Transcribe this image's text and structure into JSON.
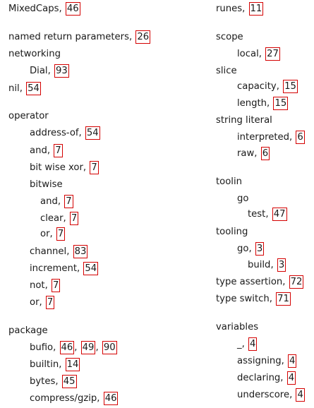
{
  "left_column": [
    {
      "term": "MixedCaps",
      "pages": [
        "46"
      ]
    },
    {
      "term": "named return parameters",
      "pages": [
        "26"
      ]
    },
    {
      "term": "networking",
      "pages": []
    },
    {
      "term": "Dial",
      "pages": [
        "93"
      ]
    },
    {
      "term": "nil",
      "pages": [
        "54"
      ]
    },
    {
      "term": "operator",
      "pages": []
    },
    {
      "term": "address-of",
      "pages": [
        "54"
      ]
    },
    {
      "term": "and",
      "pages": [
        "7"
      ]
    },
    {
      "term": "bit wise xor",
      "pages": [
        "7"
      ]
    },
    {
      "term": "bitwise",
      "pages": []
    },
    {
      "term": "and",
      "pages": [
        "7"
      ]
    },
    {
      "term": "clear",
      "pages": [
        "7"
      ]
    },
    {
      "term": "or",
      "pages": [
        "7"
      ]
    },
    {
      "term": "channel",
      "pages": [
        "83"
      ]
    },
    {
      "term": "increment",
      "pages": [
        "54"
      ]
    },
    {
      "term": "not",
      "pages": [
        "7"
      ]
    },
    {
      "term": "or",
      "pages": [
        "7"
      ]
    },
    {
      "term": "package",
      "pages": []
    },
    {
      "term": "bufio",
      "pages": [
        "46",
        "49",
        "90"
      ]
    },
    {
      "term": "builtin",
      "pages": [
        "14"
      ]
    },
    {
      "term": "bytes",
      "pages": [
        "45"
      ]
    },
    {
      "term": "compress/gzip",
      "pages": [
        "46"
      ]
    }
  ],
  "right_column": [
    {
      "term": "runes",
      "pages": [
        "11"
      ]
    },
    {
      "term": "scope",
      "pages": []
    },
    {
      "term": "local",
      "pages": [
        "27"
      ]
    },
    {
      "term": "slice",
      "pages": []
    },
    {
      "term": "capacity",
      "pages": [
        "15"
      ]
    },
    {
      "term": "length",
      "pages": [
        "15"
      ]
    },
    {
      "term": "string literal",
      "pages": []
    },
    {
      "term": "interpreted",
      "pages": [
        "6"
      ]
    },
    {
      "term": "raw",
      "pages": [
        "6"
      ]
    },
    {
      "term": "toolin",
      "pages": []
    },
    {
      "term": "go",
      "pages": []
    },
    {
      "term": "test",
      "pages": [
        "47"
      ]
    },
    {
      "term": "tooling",
      "pages": []
    },
    {
      "term": "go",
      "pages": [
        "3"
      ]
    },
    {
      "term": "build",
      "pages": [
        "3"
      ]
    },
    {
      "term": "type assertion",
      "pages": [
        "72"
      ]
    },
    {
      "term": "type switch",
      "pages": [
        "71"
      ]
    },
    {
      "term": "variables",
      "pages": []
    },
    {
      "term": "_",
      "pages": [
        "4"
      ]
    },
    {
      "term": "assigning",
      "pages": [
        "4"
      ]
    },
    {
      "term": "declaring",
      "pages": [
        "4"
      ]
    },
    {
      "term": "underscore",
      "pages": [
        "4"
      ]
    }
  ],
  "colors": {
    "page_box_border": "#d40000",
    "text": "#1a1a1a"
  }
}
